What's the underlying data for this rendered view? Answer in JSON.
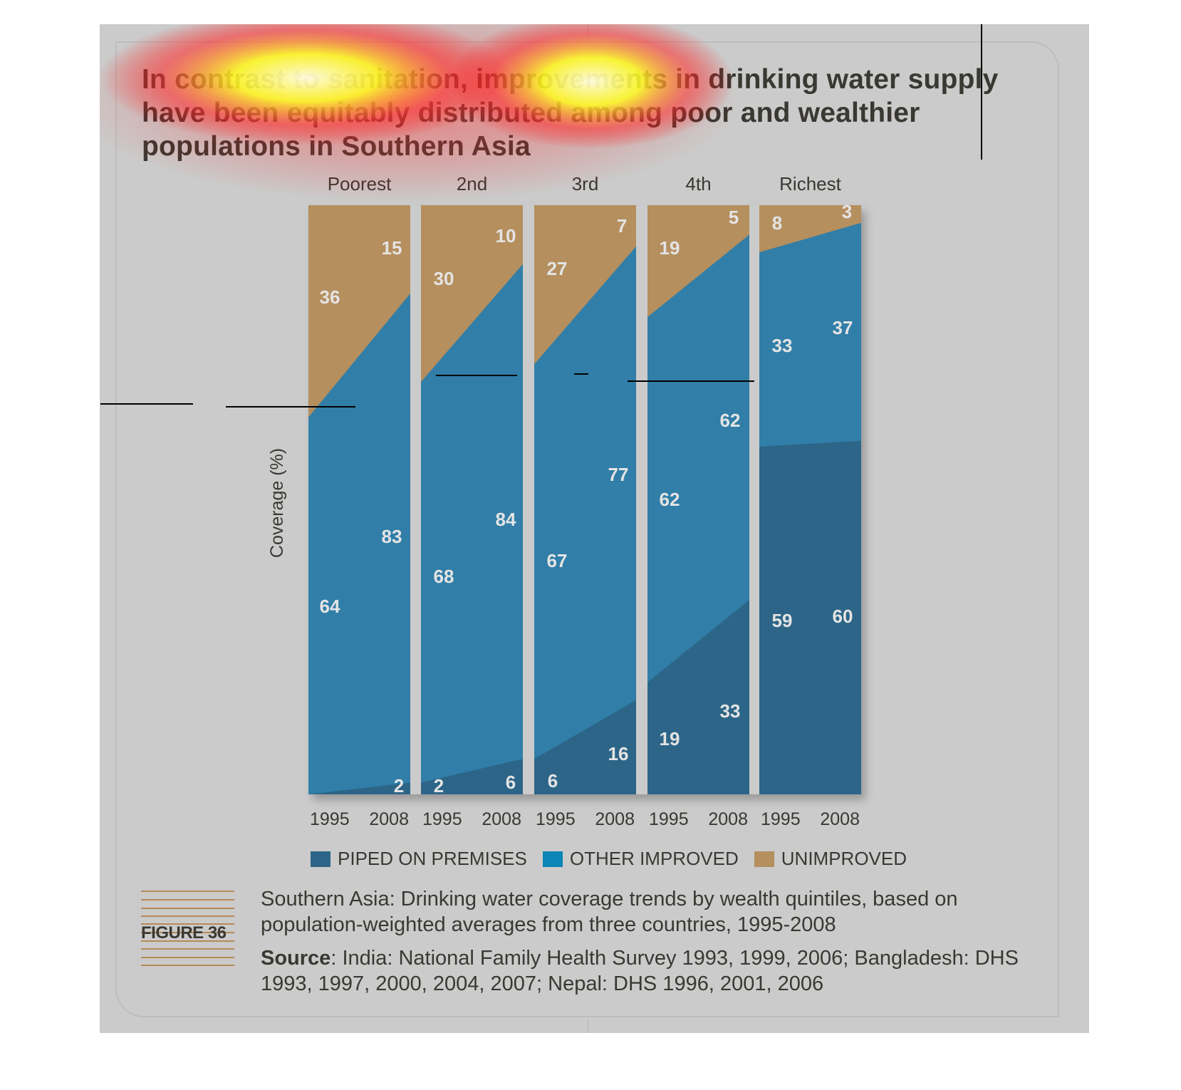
{
  "headline": "In contrast to sanitation, improvements in drinking water supply have been equitably distributed among poor and wealthier populations in Southern Asia",
  "chart_data": {
    "type": "area",
    "subtype": "stacked-100-percent-panels",
    "ylabel": "Coverage (%)",
    "ylim": [
      0,
      100
    ],
    "x": [
      "1995",
      "2008"
    ],
    "panels": [
      {
        "name": "Poorest",
        "piped": [
          0,
          2
        ],
        "other_improved": [
          64,
          83
        ],
        "unimproved": [
          36,
          15
        ],
        "labels": {
          "piped": [
            null,
            "2"
          ],
          "other_improved": [
            "64",
            "83"
          ],
          "unimproved": [
            "36",
            "15"
          ]
        }
      },
      {
        "name": "2nd",
        "piped": [
          2,
          6
        ],
        "other_improved": [
          68,
          84
        ],
        "unimproved": [
          30,
          10
        ],
        "labels": {
          "piped": [
            "2",
            "6"
          ],
          "other_improved": [
            "68",
            "84"
          ],
          "unimproved": [
            "30",
            "10"
          ]
        }
      },
      {
        "name": "3rd",
        "piped": [
          6,
          16
        ],
        "other_improved": [
          67,
          77
        ],
        "unimproved": [
          27,
          7
        ],
        "labels": {
          "piped": [
            "6",
            "16"
          ],
          "other_improved": [
            "67",
            "77"
          ],
          "unimproved": [
            "27",
            "7"
          ]
        }
      },
      {
        "name": "4th",
        "piped": [
          19,
          33
        ],
        "other_improved": [
          62,
          62
        ],
        "unimproved": [
          19,
          5
        ],
        "labels": {
          "piped": [
            "19",
            "33"
          ],
          "other_improved": [
            "62",
            "62"
          ],
          "unimproved": [
            "19",
            "5"
          ]
        }
      },
      {
        "name": "Richest",
        "piped": [
          59,
          60
        ],
        "other_improved": [
          33,
          37
        ],
        "unimproved": [
          8,
          3
        ],
        "labels": {
          "piped": [
            "59",
            "60"
          ],
          "other_improved": [
            "33",
            "37"
          ],
          "unimproved": [
            "8",
            "3"
          ]
        }
      }
    ],
    "series": [
      {
        "name": "PIPED ON PREMISES",
        "color": "#2c6587"
      },
      {
        "name": "OTHER IMPROVED",
        "color": "#317ea8"
      },
      {
        "name": "UNIMPROVED",
        "color": "#b58f5e"
      }
    ],
    "legend_position": "bottom",
    "grid": false
  },
  "legend": {
    "items": [
      {
        "label": "PIPED ON PREMISES",
        "color": "#2c6587"
      },
      {
        "label": "OTHER IMPROVED",
        "color": "#0a85b5"
      },
      {
        "label": "UNIMPROVED",
        "color": "#b58f5e"
      }
    ]
  },
  "figure": {
    "label": "FIGURE 36",
    "caption": "Southern Asia: Drinking water coverage trends by wealth quintiles, based on population-weighted averages from three countries, 1995-2008",
    "source_label": "Source",
    "source_text": ": India: National Family Health Survey 1993, 1999, 2006; Bangladesh: DHS 1993, 1997, 2000, 2004, 2007; Nepal: DHS 1996, 2001, 2006"
  }
}
